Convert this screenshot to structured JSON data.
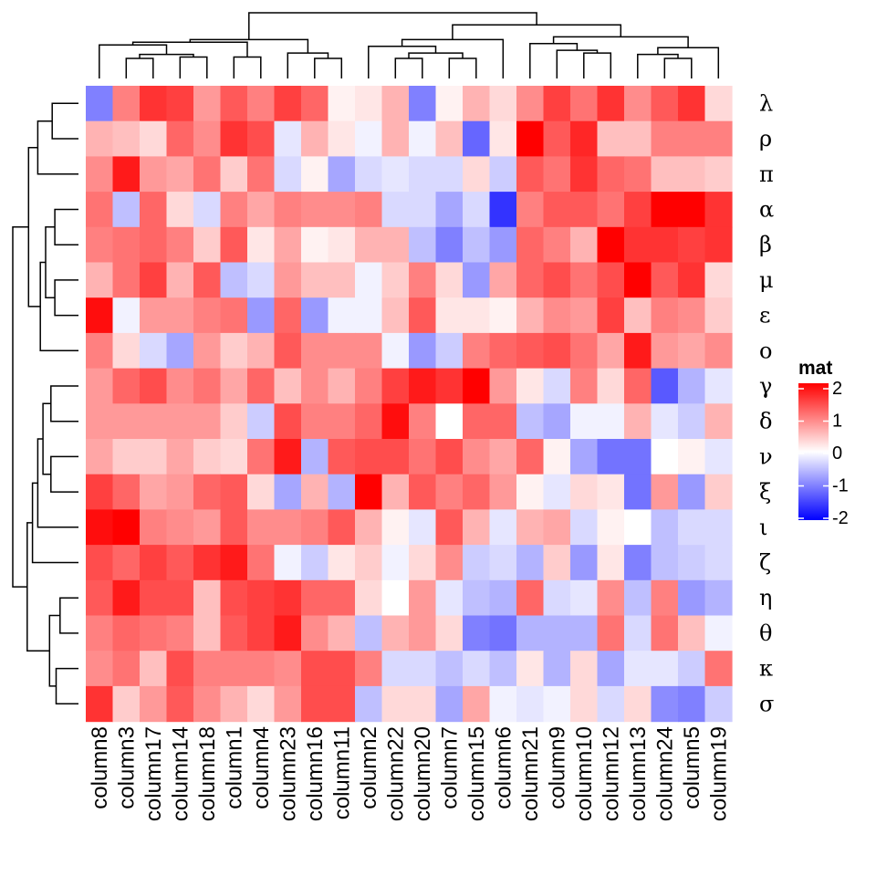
{
  "chart_data": {
    "type": "heatmap",
    "title": "",
    "columns": [
      "column8",
      "column3",
      "column17",
      "column14",
      "column18",
      "column1",
      "column4",
      "column23",
      "column16",
      "column11",
      "column2",
      "column22",
      "column20",
      "column7",
      "column15",
      "column6",
      "column21",
      "column9",
      "column10",
      "column12",
      "column13",
      "column24",
      "column5",
      "column19"
    ],
    "rows": [
      "λ",
      "ρ",
      "π",
      "α",
      "β",
      "μ",
      "ε",
      "ο",
      "γ",
      "δ",
      "ν",
      "ξ",
      "ι",
      "ζ",
      "η",
      "θ",
      "κ",
      "σ"
    ],
    "values": [
      [
        -1.0,
        1.0,
        1.6,
        1.5,
        0.8,
        1.3,
        1.0,
        1.5,
        1.2,
        0.1,
        0.2,
        0.6,
        -1.0,
        0.1,
        0.6,
        0.3,
        0.9,
        1.5,
        1.1,
        1.6,
        0.9,
        1.3,
        1.6,
        0.3
      ],
      [
        0.6,
        0.5,
        0.3,
        1.2,
        0.9,
        1.6,
        1.4,
        -0.2,
        0.6,
        0.2,
        -0.1,
        0.6,
        -0.1,
        0.5,
        -1.2,
        0.2,
        2.1,
        1.3,
        1.7,
        0.5,
        0.5,
        1.0,
        1.0,
        1.0
      ],
      [
        0.9,
        1.8,
        0.8,
        0.7,
        1.1,
        0.4,
        1.1,
        -0.3,
        0.1,
        -0.7,
        -0.3,
        -0.2,
        -0.3,
        -0.3,
        0.3,
        -0.4,
        1.3,
        1.1,
        1.6,
        1.2,
        1.1,
        0.5,
        0.5,
        0.4
      ],
      [
        1.1,
        -0.5,
        1.2,
        0.3,
        -0.3,
        1.0,
        0.7,
        1.0,
        0.9,
        0.9,
        1.0,
        -0.3,
        -0.3,
        -0.7,
        -0.3,
        -1.6,
        1.0,
        1.3,
        1.3,
        1.1,
        1.5,
        2.1,
        2.1,
        1.6
      ],
      [
        1.0,
        1.1,
        1.2,
        1.0,
        0.4,
        1.3,
        0.2,
        0.7,
        0.1,
        0.2,
        0.6,
        0.6,
        -0.5,
        -1.0,
        -0.5,
        -0.8,
        1.2,
        1.0,
        0.6,
        2.1,
        1.6,
        1.6,
        1.5,
        1.6
      ],
      [
        0.6,
        1.1,
        1.5,
        0.6,
        1.3,
        -0.5,
        -0.3,
        0.8,
        0.5,
        0.5,
        -0.1,
        0.4,
        1.0,
        0.3,
        -0.8,
        0.7,
        1.2,
        1.4,
        1.1,
        1.4,
        2.2,
        1.3,
        1.6,
        0.3
      ],
      [
        1.9,
        -0.1,
        0.8,
        0.8,
        1.0,
        1.1,
        -0.8,
        1.2,
        -0.8,
        -0.1,
        -0.1,
        0.5,
        1.3,
        0.2,
        0.2,
        0.1,
        0.6,
        0.9,
        0.8,
        1.5,
        0.5,
        1.0,
        0.9,
        0.4
      ],
      [
        1.0,
        0.3,
        -0.3,
        -0.7,
        0.8,
        0.4,
        0.6,
        1.3,
        0.9,
        0.9,
        0.9,
        -0.1,
        -0.8,
        -0.4,
        1.0,
        1.2,
        1.3,
        1.4,
        1.1,
        0.7,
        1.8,
        0.8,
        0.7,
        0.9
      ],
      [
        0.8,
        1.2,
        1.4,
        0.9,
        1.1,
        0.7,
        1.2,
        0.5,
        0.9,
        0.6,
        1.0,
        1.5,
        1.8,
        1.6,
        2.0,
        0.8,
        0.2,
        -0.3,
        1.0,
        0.3,
        1.2,
        -1.3,
        -0.6,
        -0.2
      ],
      [
        0.8,
        0.8,
        0.8,
        0.8,
        0.8,
        0.4,
        -0.4,
        1.4,
        1.0,
        1.0,
        1.2,
        1.9,
        1.0,
        0.0,
        1.2,
        1.2,
        -0.5,
        -0.7,
        -0.1,
        -0.1,
        0.6,
        -0.2,
        -0.4,
        0.6
      ],
      [
        0.7,
        0.4,
        0.4,
        0.7,
        0.4,
        0.3,
        1.1,
        1.8,
        -0.6,
        1.3,
        1.4,
        1.4,
        1.1,
        1.4,
        0.9,
        0.7,
        1.2,
        0.1,
        -0.7,
        -1.1,
        -1.1,
        0.0,
        0.1,
        -0.2
      ],
      [
        1.5,
        1.2,
        0.7,
        0.8,
        1.2,
        1.3,
        0.3,
        -0.7,
        0.6,
        -0.6,
        2.0,
        0.6,
        1.3,
        1.0,
        1.2,
        0.8,
        0.1,
        -0.2,
        0.3,
        0.2,
        -1.1,
        0.8,
        -0.8,
        0.4
      ],
      [
        1.9,
        2.1,
        1.0,
        0.9,
        0.8,
        1.3,
        0.9,
        0.9,
        1.0,
        1.3,
        0.6,
        0.1,
        -0.2,
        1.3,
        0.6,
        -0.2,
        0.6,
        0.7,
        -0.3,
        0.1,
        0.0,
        -0.5,
        -0.3,
        -0.3
      ],
      [
        1.4,
        1.2,
        1.5,
        1.3,
        1.6,
        1.8,
        1.1,
        -0.1,
        -0.4,
        0.2,
        0.4,
        -0.1,
        0.3,
        0.9,
        -0.4,
        -0.3,
        -0.6,
        0.4,
        -0.8,
        0.2,
        -1.0,
        -0.5,
        -0.4,
        -0.3
      ],
      [
        1.3,
        1.8,
        1.4,
        1.4,
        0.5,
        1.4,
        1.5,
        1.6,
        1.2,
        1.2,
        0.3,
        0.0,
        0.8,
        -0.2,
        -0.5,
        -0.6,
        1.2,
        -0.3,
        -0.2,
        0.9,
        -0.5,
        1.0,
        -0.8,
        -0.6
      ],
      [
        1.0,
        1.2,
        1.1,
        1.0,
        0.5,
        1.3,
        1.5,
        1.8,
        0.9,
        0.6,
        -0.5,
        0.6,
        0.8,
        0.3,
        -1.0,
        -1.1,
        -0.6,
        -0.6,
        -0.6,
        1.1,
        -0.3,
        1.1,
        0.5,
        -0.1
      ],
      [
        0.9,
        1.1,
        0.5,
        1.4,
        1.0,
        1.0,
        1.0,
        0.9,
        1.4,
        1.4,
        1.0,
        -0.3,
        -0.3,
        -0.5,
        -0.3,
        -0.5,
        0.2,
        -0.6,
        0.3,
        -0.7,
        -0.2,
        -0.2,
        -0.4,
        1.1
      ],
      [
        1.6,
        0.4,
        0.8,
        1.3,
        0.9,
        0.6,
        0.3,
        0.8,
        1.4,
        1.4,
        -0.5,
        0.3,
        0.3,
        -0.7,
        0.7,
        -0.1,
        -0.2,
        -0.1,
        0.3,
        -0.3,
        0.3,
        -0.9,
        -1.0,
        -0.4
      ]
    ],
    "legend": {
      "title": "mat",
      "breaks": [
        2,
        1,
        0,
        -1,
        -2
      ],
      "colors": {
        "high": "#ff0000",
        "mid": "#ffffff",
        "low": "#0000ff"
      }
    },
    "row_dendrogram": {
      "merges": [
        [
          0,
          1
        ],
        [
          2,
          "m0"
        ],
        [
          3,
          4
        ],
        [
          5,
          6
        ],
        [
          "m2",
          "m3"
        ],
        [
          "m4",
          7
        ],
        [
          "m1",
          "m5"
        ],
        [
          8,
          9
        ],
        [
          10,
          11
        ],
        [
          "m7",
          "m8"
        ],
        [
          "m9",
          12
        ],
        [
          "m10",
          13
        ],
        [
          14,
          15
        ],
        [
          16,
          17
        ],
        [
          "m12",
          "m13"
        ],
        [
          "m11",
          "m14"
        ],
        [
          "m6",
          "m15"
        ]
      ],
      "heights": [
        1.0,
        1.55,
        0.9,
        0.9,
        1.25,
        1.45,
        1.9,
        1.05,
        1.05,
        1.35,
        1.55,
        1.75,
        0.7,
        0.85,
        1.1,
        1.95,
        2.5
      ]
    },
    "column_dendrogram": {
      "merges": [
        [
          1,
          2
        ],
        [
          3,
          4
        ],
        [
          "m0",
          "m1"
        ],
        [
          0,
          "m2"
        ],
        [
          5,
          6
        ],
        [
          "m3",
          "m4"
        ],
        [
          8,
          9
        ],
        [
          7,
          "m6"
        ],
        [
          "m5",
          "m7"
        ],
        [
          11,
          12
        ],
        [
          13,
          14
        ],
        [
          "m9",
          "m10"
        ],
        [
          10,
          "m11"
        ],
        [
          15,
          "m12"
        ],
        [
          21,
          22
        ],
        [
          20,
          "m14"
        ],
        [
          "m15",
          23
        ],
        [
          18,
          19
        ],
        [
          17,
          "m17"
        ],
        [
          16,
          "m18"
        ],
        [
          "m19",
          "m16"
        ],
        [
          "m13",
          "m20"
        ],
        [
          "m8",
          "m21"
        ]
      ],
      "heights": [
        0.75,
        0.8,
        0.9,
        1.25,
        0.8,
        1.35,
        0.75,
        0.95,
        1.45,
        0.75,
        0.75,
        0.95,
        1.2,
        1.45,
        0.75,
        0.9,
        1.15,
        0.95,
        1.05,
        1.3,
        1.55,
        2.0,
        2.45
      ]
    }
  }
}
